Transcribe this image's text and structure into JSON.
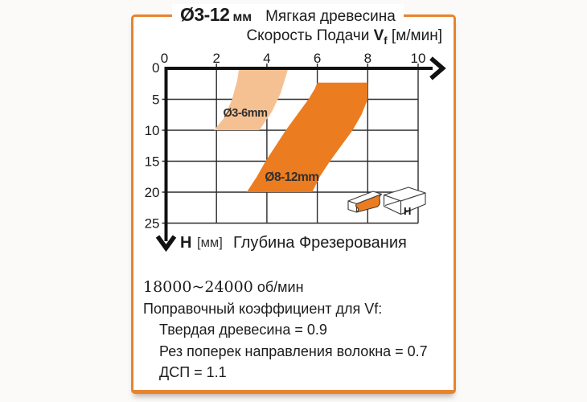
{
  "panel": {
    "border_color": "#E8842E",
    "title": {
      "diameter_range": "Ø3-12",
      "diameter_unit": "мм",
      "material": "Мягкая древесина"
    },
    "subtitle": {
      "prefix": "Скорость Подачи",
      "symbol": "V",
      "symbol_sub": "f",
      "unit": "[м/мин]"
    }
  },
  "chart_data": {
    "type": "area",
    "title": "Скорость Подачи Vf [м/мин] — Мягкая древесина, Ø3-12 мм",
    "xlabel": "Скорость Подачи Vf [м/мин]",
    "ylabel": "H [мм] Глубина Фрезерования",
    "xlim": [
      0,
      10
    ],
    "ylim": [
      0,
      25
    ],
    "y_direction": "down",
    "grid": true,
    "x_ticks": [
      "0",
      "2",
      "4",
      "6",
      "8",
      "10"
    ],
    "y_ticks": [
      "0",
      "5",
      "10",
      "15",
      "20",
      "25"
    ],
    "bands": [
      {
        "label": "Ø3-6mm",
        "color": "#F6C192",
        "depth_range_mm": [
          0,
          10
        ],
        "feed_range_at_top": [
          2.9,
          4.85
        ],
        "feed_range_at_bottom": [
          1.9,
          3.7
        ],
        "polygon": [
          [
            2.9,
            0
          ],
          [
            4.85,
            0
          ],
          [
            4.55,
            4
          ],
          [
            4.2,
            7
          ],
          [
            3.7,
            10
          ],
          [
            1.9,
            10
          ],
          [
            2.3,
            8
          ],
          [
            2.62,
            5
          ],
          [
            2.82,
            2
          ]
        ]
      },
      {
        "label": "Ø8-12mm",
        "color": "#EB7D20",
        "depth_range_mm": [
          2.3,
          20
        ],
        "feed_range_at_top": [
          6,
          8
        ],
        "feed_range_at_bottom": [
          3.2,
          5.8
        ],
        "polygon": [
          [
            6,
            2.3
          ],
          [
            8,
            2.3
          ],
          [
            8,
            5
          ],
          [
            7.75,
            7.5
          ],
          [
            7.4,
            10
          ],
          [
            6.95,
            12.5
          ],
          [
            6.5,
            15
          ],
          [
            6.1,
            17.5
          ],
          [
            5.8,
            20
          ],
          [
            3.2,
            20
          ],
          [
            3.6,
            17.5
          ],
          [
            3.95,
            15
          ],
          [
            4.35,
            12.5
          ],
          [
            4.75,
            10
          ],
          [
            5.2,
            7.5
          ],
          [
            5.65,
            5
          ],
          [
            5.9,
            3.3
          ]
        ]
      }
    ]
  },
  "h_axis": {
    "symbol": "H",
    "unit": "[мм]",
    "text": "Глубина Фрезерования"
  },
  "icon": {
    "h_label": "H"
  },
  "notes": {
    "rpm_value": "18000~24000",
    "rpm_unit": "об/мин",
    "coef_header": "Поправочный коэффициент для Vf:",
    "coef_lines": [
      "Твердая древесина = 0.9",
      "Рез поперек направления волокна = 0.7",
      "ДСП = 1.1"
    ]
  }
}
